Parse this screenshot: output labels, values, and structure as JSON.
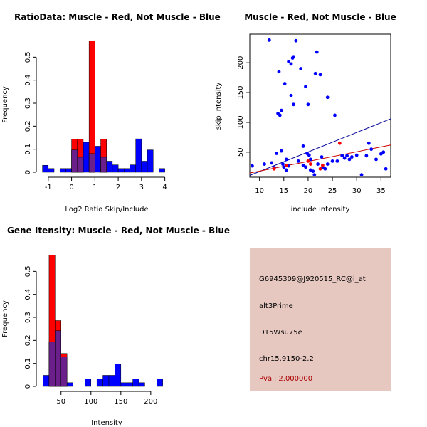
{
  "colors": {
    "red": "#ff0000",
    "blue": "#0000ff",
    "overlap": "#6a1f8a",
    "panel_bg": "#e6c8c0",
    "pval": "#aa0000",
    "line_red": "#cc0000",
    "line_blue": "#000099"
  },
  "chart_data": [
    {
      "id": "ratio_hist",
      "type": "bar",
      "title": "RatioData: Muscle - Red, Not Muscle - Blue",
      "xlabel": "Log2 Ratio Skip/Include",
      "ylabel": "Frequency",
      "xlim": [
        -1.3,
        4.5
      ],
      "ylim": [
        0,
        0.6
      ],
      "xticks": [
        -1,
        0,
        1,
        2,
        3,
        4
      ],
      "yticks": [
        0,
        0.1,
        0.2,
        0.3,
        0.4,
        0.5
      ],
      "bin_width": 0.25,
      "series": [
        {
          "name": "Not Muscle",
          "color": "blue",
          "bins": [
            [
              -1.25,
              0.03
            ],
            [
              -1.0,
              0.016
            ],
            [
              -0.5,
              0.016
            ],
            [
              -0.25,
              0.016
            ],
            [
              0.0,
              0.097
            ],
            [
              0.25,
              0.065
            ],
            [
              0.5,
              0.13
            ],
            [
              0.75,
              0.081
            ],
            [
              1.0,
              0.113
            ],
            [
              1.25,
              0.065
            ],
            [
              1.5,
              0.048
            ],
            [
              1.75,
              0.032
            ],
            [
              2.0,
              0.016
            ],
            [
              2.25,
              0.016
            ],
            [
              2.5,
              0.032
            ],
            [
              2.75,
              0.145
            ],
            [
              3.0,
              0.048
            ],
            [
              3.25,
              0.097
            ],
            [
              3.75,
              0.016
            ]
          ]
        },
        {
          "name": "Muscle",
          "color": "red",
          "bins": [
            [
              0.0,
              0.143
            ],
            [
              0.25,
              0.143
            ],
            [
              0.75,
              0.571
            ],
            [
              1.25,
              0.143
            ]
          ]
        }
      ]
    },
    {
      "id": "intensity_scatter",
      "type": "scatter",
      "title": "Muscle - Red, Not Muscle - Blue",
      "xlabel": "include intensity",
      "ylabel": "skip intensity",
      "xlim": [
        8,
        37
      ],
      "ylim": [
        8,
        248
      ],
      "xticks": [
        10,
        15,
        20,
        25,
        30,
        35
      ],
      "yticks": [
        50,
        100,
        150,
        200
      ],
      "blue_points": [
        [
          8.5,
          27
        ],
        [
          11,
          30
        ],
        [
          12,
          238
        ],
        [
          12.5,
          32
        ],
        [
          13,
          24
        ],
        [
          13.5,
          48
        ],
        [
          13.8,
          115
        ],
        [
          14,
          185
        ],
        [
          14.2,
          112
        ],
        [
          14.5,
          120
        ],
        [
          14.5,
          52
        ],
        [
          14.8,
          30
        ],
        [
          15,
          25
        ],
        [
          15.2,
          165
        ],
        [
          15.5,
          38
        ],
        [
          15.5,
          20
        ],
        [
          16,
          202
        ],
        [
          16,
          27
        ],
        [
          16.5,
          198
        ],
        [
          16.5,
          145
        ],
        [
          16.8,
          208
        ],
        [
          17,
          130
        ],
        [
          17,
          210
        ],
        [
          17.5,
          237
        ],
        [
          18,
          35
        ],
        [
          18.5,
          190
        ],
        [
          19,
          60
        ],
        [
          19,
          28
        ],
        [
          19.5,
          25
        ],
        [
          19.5,
          160
        ],
        [
          19.8,
          48
        ],
        [
          20,
          130
        ],
        [
          20.2,
          45
        ],
        [
          20.5,
          20
        ],
        [
          20.5,
          38
        ],
        [
          21,
          18
        ],
        [
          21.3,
          12
        ],
        [
          21.5,
          182
        ],
        [
          21.8,
          218
        ],
        [
          22,
          30
        ],
        [
          22.5,
          180
        ],
        [
          22.8,
          42
        ],
        [
          23,
          25
        ],
        [
          23.5,
          22
        ],
        [
          24,
          142
        ],
        [
          24,
          30
        ],
        [
          25,
          35
        ],
        [
          25.5,
          112
        ],
        [
          26,
          35
        ],
        [
          27,
          44
        ],
        [
          27.5,
          40
        ],
        [
          28,
          44
        ],
        [
          28.5,
          38
        ],
        [
          29,
          42
        ],
        [
          30,
          45
        ],
        [
          31,
          12
        ],
        [
          32,
          44
        ],
        [
          32.5,
          65
        ],
        [
          33,
          55
        ],
        [
          34,
          38
        ],
        [
          35,
          47
        ],
        [
          35.5,
          50
        ],
        [
          36,
          22
        ]
      ],
      "red_points": [
        [
          13,
          22
        ],
        [
          15.5,
          28
        ],
        [
          20,
          35
        ],
        [
          20.5,
          30
        ],
        [
          22.5,
          22
        ],
        [
          23,
          28
        ],
        [
          26.5,
          65
        ]
      ],
      "fit_lines": [
        {
          "name": "blue fit",
          "color": "line_blue",
          "from": [
            8,
            11
          ],
          "to": [
            37,
            106
          ]
        },
        {
          "name": "red fit",
          "color": "line_red",
          "from": [
            8,
            15
          ],
          "to": [
            37,
            62
          ]
        }
      ]
    },
    {
      "id": "gene_hist",
      "type": "bar",
      "title": "Gene Itensity: Muscle - Red, Not Muscle - Blue",
      "xlabel": "Intensity",
      "ylabel": "Frequency",
      "xlim": [
        17,
        243
      ],
      "ylim": [
        0,
        0.6
      ],
      "xticks": [
        50,
        100,
        150,
        200
      ],
      "yticks": [
        0,
        0.1,
        0.2,
        0.3,
        0.4,
        0.5
      ],
      "bin_width": 10,
      "series": [
        {
          "name": "Not Muscle",
          "color": "blue",
          "bins": [
            [
              20,
              0.048
            ],
            [
              30,
              0.194
            ],
            [
              40,
              0.242
            ],
            [
              50,
              0.129
            ],
            [
              60,
              0.016
            ],
            [
              90,
              0.032
            ],
            [
              110,
              0.032
            ],
            [
              120,
              0.048
            ],
            [
              130,
              0.048
            ],
            [
              140,
              0.097
            ],
            [
              150,
              0.016
            ],
            [
              160,
              0.016
            ],
            [
              170,
              0.032
            ],
            [
              180,
              0.016
            ],
            [
              210,
              0.032
            ]
          ]
        },
        {
          "name": "Muscle",
          "color": "red",
          "bins": [
            [
              30,
              0.571
            ],
            [
              40,
              0.286
            ],
            [
              50,
              0.143
            ]
          ]
        }
      ]
    }
  ],
  "info": {
    "probe": "G6945309@J920515_RC@i_at",
    "event": "alt3Prime",
    "gene": "D15Wsu75e",
    "location": "chr15.9150-2.2",
    "pval": "Pval: 2.000000"
  }
}
